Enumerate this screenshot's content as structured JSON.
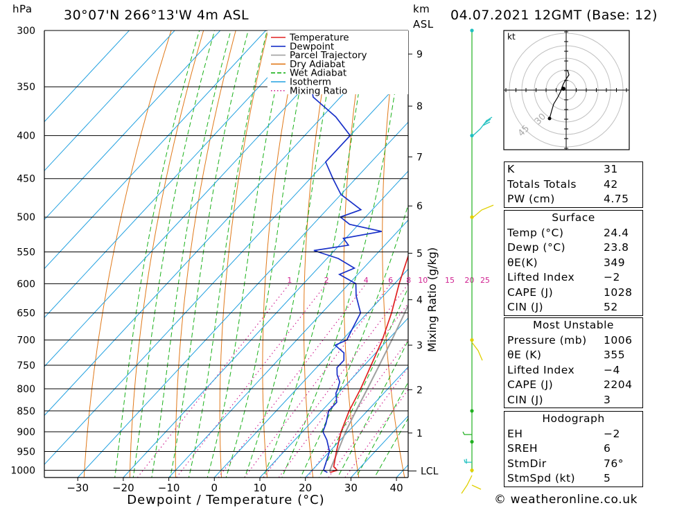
{
  "header": {
    "pressure_unit": "hPa",
    "location": "30°07'N 266°13'W 4m ASL",
    "km_label": "km",
    "asl_label": "ASL",
    "datetime": "04.07.2021 12GMT (Base: 12)"
  },
  "colors": {
    "temperature": "#e02020",
    "dewpoint": "#1830c8",
    "parcel": "#a0a0a0",
    "dry_adiabat": "#e07818",
    "wet_adiabat": "#18b018",
    "isotherm": "#20a0e0",
    "mixing_ratio": "#d02090",
    "wind_axis": "#20b020",
    "wind_barb_green": "#20b020",
    "wind_barb_yellow": "#e0d000",
    "wind_barb_cyan": "#20c0c0"
  },
  "chart_data": {
    "type": "line",
    "subtype": "skew-T log-P sounding",
    "xlabel": "Dewpoint / Temperature (°C)",
    "ylabel": "hPa",
    "right_axis_label": "Mixing Ratio (g/kg)",
    "x_ticks": [
      -30,
      -20,
      -10,
      0,
      10,
      20,
      30,
      40
    ],
    "pressure_levels": [
      300,
      350,
      400,
      450,
      500,
      550,
      600,
      650,
      700,
      750,
      800,
      850,
      900,
      950,
      1000
    ],
    "height_km_ticks": [
      {
        "label": "1",
        "p": 903
      },
      {
        "label": "2",
        "p": 802
      },
      {
        "label": "3",
        "p": 710
      },
      {
        "label": "4",
        "p": 627
      },
      {
        "label": "5",
        "p": 552
      },
      {
        "label": "6",
        "p": 485
      },
      {
        "label": "7",
        "p": 424
      },
      {
        "label": "8",
        "p": 369
      },
      {
        "label": "9",
        "p": 320
      }
    ],
    "lcl_label": "LCL",
    "lcl_p": 1002,
    "mixing_ratio_labels": [
      "1",
      "2",
      "4",
      "6",
      "8",
      "10",
      "15",
      "20",
      "25"
    ],
    "mixing_ratio_values": [
      1,
      2,
      4,
      6,
      8,
      10,
      15,
      20,
      25
    ],
    "legend": [
      "Temperature",
      "Dewpoint",
      "Parcel Trajectory",
      "Dry Adiabat",
      "Wet Adiabat",
      "Isotherm",
      "Mixing Ratio"
    ],
    "series": [
      {
        "name": "Temperature",
        "points": [
          [
            1006,
            24.4
          ],
          [
            1000,
            25.5
          ],
          [
            990,
            24.0
          ],
          [
            950,
            21.5
          ],
          [
            900,
            18.5
          ],
          [
            850,
            16.0
          ],
          [
            800,
            14.0
          ],
          [
            750,
            11.5
          ],
          [
            700,
            8.8
          ],
          [
            650,
            5.3
          ],
          [
            600,
            1.0
          ],
          [
            550,
            -3.2
          ],
          [
            500,
            -8.0
          ],
          [
            450,
            -13.5
          ],
          [
            400,
            -20.0
          ],
          [
            350,
            -27.5
          ],
          [
            320,
            -33.0
          ],
          [
            300,
            -37.0
          ]
        ]
      },
      {
        "name": "Dewpoint",
        "points": [
          [
            1006,
            23.8
          ],
          [
            1000,
            22.5
          ],
          [
            980,
            21.5
          ],
          [
            950,
            20.0
          ],
          [
            920,
            17.0
          ],
          [
            900,
            14.5
          ],
          [
            880,
            13.5
          ],
          [
            850,
            11.5
          ],
          [
            830,
            11.5
          ],
          [
            810,
            9.5
          ],
          [
            800,
            9.0
          ],
          [
            785,
            8.0
          ],
          [
            770,
            6.0
          ],
          [
            755,
            4.5
          ],
          [
            740,
            4.5
          ],
          [
            725,
            3.0
          ],
          [
            710,
            -0.5
          ],
          [
            700,
            1.0
          ],
          [
            680,
            0.0
          ],
          [
            650,
            -1.5
          ],
          [
            620,
            -6.0
          ],
          [
            600,
            -8.5
          ],
          [
            585,
            -14.0
          ],
          [
            575,
            -12.0
          ],
          [
            560,
            -17.5
          ],
          [
            548,
            -24.5
          ],
          [
            540,
            -18.0
          ],
          [
            530,
            -20.5
          ],
          [
            520,
            -13.5
          ],
          [
            510,
            -22.0
          ],
          [
            500,
            -25.5
          ],
          [
            490,
            -22.5
          ],
          [
            470,
            -30.0
          ],
          [
            450,
            -35.0
          ],
          [
            430,
            -40.0
          ],
          [
            400,
            -40.0
          ],
          [
            380,
            -47.0
          ],
          [
            360,
            -56.0
          ],
          [
            340,
            -61.0
          ],
          [
            330,
            -66.0
          ],
          [
            320,
            -57.0
          ],
          [
            310,
            -60.0
          ],
          [
            300,
            -64.0
          ]
        ]
      },
      {
        "name": "Parcel Trajectory",
        "points": [
          [
            1006,
            24.4
          ],
          [
            1000,
            23.9
          ],
          [
            950,
            21.8
          ],
          [
            900,
            19.5
          ],
          [
            850,
            17.5
          ],
          [
            800,
            15.5
          ],
          [
            750,
            13.3
          ],
          [
            700,
            10.9
          ],
          [
            650,
            8.2
          ],
          [
            600,
            5.1
          ],
          [
            550,
            1.6
          ],
          [
            500,
            -2.4
          ],
          [
            450,
            -7.2
          ],
          [
            400,
            -13.0
          ],
          [
            370,
            -17.5
          ]
        ]
      }
    ]
  },
  "hodograph": {
    "unit_label": "kt",
    "ring_labels": [
      "30",
      "45"
    ]
  },
  "indices": {
    "top": [
      {
        "label": "K",
        "value": "31"
      },
      {
        "label": "Totals Totals",
        "value": "42"
      },
      {
        "label": "PW (cm)",
        "value": "4.75"
      }
    ],
    "surface_title": "Surface",
    "surface": [
      {
        "label": "Temp (°C)",
        "value": "24.4"
      },
      {
        "label": "Dewp (°C)",
        "value": "23.8"
      },
      {
        "label": "θE(K)",
        "value": "349"
      },
      {
        "label": "Lifted Index",
        "value": "-2"
      },
      {
        "label": "CAPE (J)",
        "value": "1028"
      },
      {
        "label": "CIN (J)",
        "value": "52"
      }
    ],
    "most_unstable_title": "Most Unstable",
    "most_unstable": [
      {
        "label": "Pressure (mb)",
        "value": "1006"
      },
      {
        "label": "θE (K)",
        "value": "355"
      },
      {
        "label": "Lifted Index",
        "value": "-4"
      },
      {
        "label": "CAPE (J)",
        "value": "2204"
      },
      {
        "label": "CIN (J)",
        "value": "3"
      }
    ],
    "hodograph_title": "Hodograph",
    "hodograph": [
      {
        "label": "EH",
        "value": "-2"
      },
      {
        "label": "SREH",
        "value": "6"
      },
      {
        "label": "StmDir",
        "value": "76°"
      },
      {
        "label": "StmSpd (kt)",
        "value": "5"
      }
    ]
  },
  "credit": "© weatheronline.co.uk"
}
